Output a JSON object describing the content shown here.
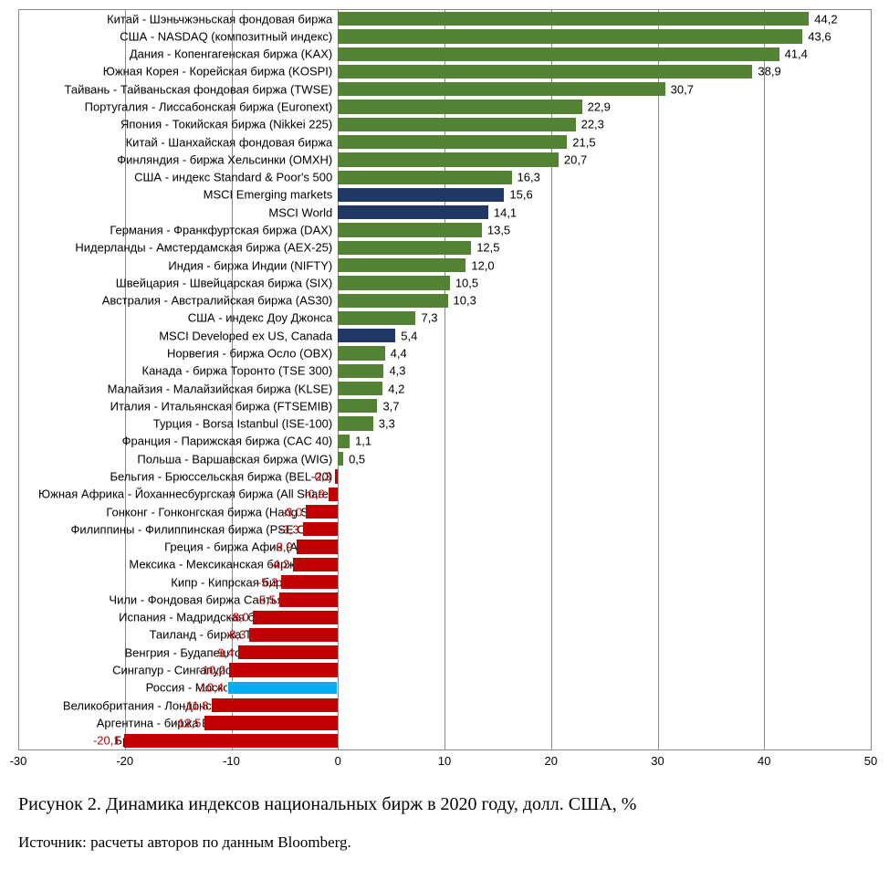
{
  "chart": {
    "type": "bar-horizontal",
    "background_color": "#ffffff",
    "grid_color": "#8a8a8a",
    "axis_color": "#8a8a8a",
    "label_fontsize": 13,
    "value_fontsize": 13,
    "bar_thickness_ratio": 0.8,
    "xlim": [
      -30,
      50
    ],
    "xtick_step": 10,
    "xticks": [
      "-30",
      "-20",
      "-10",
      "0",
      "10",
      "20",
      "30",
      "40",
      "50"
    ],
    "colors": {
      "positive": "#548235",
      "benchmark": "#1f3864",
      "negative": "#c00000",
      "highlight": "#00b0f0",
      "value_positive_text": "#000000",
      "value_negative_text": "#c00000"
    },
    "rows": [
      {
        "label": "Китай - Шэньчжэньская фондовая биржа",
        "value": 44.2,
        "display": "44,2",
        "color": "positive"
      },
      {
        "label": "США - NASDAQ (композитный индекс)",
        "value": 43.6,
        "display": "43,6",
        "color": "positive"
      },
      {
        "label": "Дания - Копенгагенская биржа (KAX)",
        "value": 41.4,
        "display": "41,4",
        "color": "positive"
      },
      {
        "label": "Южная Корея - Корейская биржа (KOSPI)",
        "value": 38.9,
        "display": "38,9",
        "color": "positive"
      },
      {
        "label": "Тайвань - Тайваньская фондовая биржа (TWSE)",
        "value": 30.7,
        "display": "30,7",
        "color": "positive"
      },
      {
        "label": "Португалия - Лиссабонская биржа (Euronext)",
        "value": 22.9,
        "display": "22,9",
        "color": "positive"
      },
      {
        "label": "Япония - Токийская биржа (Nikkei 225)",
        "value": 22.3,
        "display": "22,3",
        "color": "positive"
      },
      {
        "label": "Китай - Шанхайская фондовая биржа",
        "value": 21.5,
        "display": "21,5",
        "color": "positive"
      },
      {
        "label": "Финляндия - биржа Хельсинки (OMXH)",
        "value": 20.7,
        "display": "20,7",
        "color": "positive"
      },
      {
        "label": "США - индекс Standard & Poor's 500",
        "value": 16.3,
        "display": "16,3",
        "color": "positive"
      },
      {
        "label": "MSCI Emerging markets",
        "value": 15.6,
        "display": "15,6",
        "color": "benchmark"
      },
      {
        "label": "MSCI World",
        "value": 14.1,
        "display": "14,1",
        "color": "benchmark"
      },
      {
        "label": "Германия - Франкфуртская биржа (DAX)",
        "value": 13.5,
        "display": "13,5",
        "color": "positive"
      },
      {
        "label": "Нидерланды - Амстердамская биржа (AEX-25)",
        "value": 12.5,
        "display": "12,5",
        "color": "positive"
      },
      {
        "label": "Индия - биржа Индии (NIFTY)",
        "value": 12.0,
        "display": "12,0",
        "color": "positive"
      },
      {
        "label": "Швейцария - Швейцарская биржа (SIX)",
        "value": 10.5,
        "display": "10,5",
        "color": "positive"
      },
      {
        "label": "Австралия - Австралийская биржа (AS30)",
        "value": 10.3,
        "display": "10,3",
        "color": "positive"
      },
      {
        "label": "США - индекс Доу Джонса",
        "value": 7.3,
        "display": "7,3",
        "color": "positive"
      },
      {
        "label": "MSCI Developed ex US, Canada",
        "value": 5.4,
        "display": "5,4",
        "color": "benchmark"
      },
      {
        "label": "Норвегия - биржа Осло (OBX)",
        "value": 4.4,
        "display": "4,4",
        "color": "positive"
      },
      {
        "label": "Канада - биржа Торонто (TSE 300)",
        "value": 4.3,
        "display": "4,3",
        "color": "positive"
      },
      {
        "label": "Малайзия - Малайзийская биржа (KLSE)",
        "value": 4.2,
        "display": "4,2",
        "color": "positive"
      },
      {
        "label": "Италия - Итальянская биржа (FTSEMIB)",
        "value": 3.7,
        "display": "3,7",
        "color": "positive"
      },
      {
        "label": "Турция - Borsa Istanbul (ISE-100)",
        "value": 3.3,
        "display": "3,3",
        "color": "positive"
      },
      {
        "label": "Франция - Парижская биржа (CAC 40)",
        "value": 1.1,
        "display": "1,1",
        "color": "positive"
      },
      {
        "label": "Польша - Варшавская биржа (WIG)",
        "value": 0.5,
        "display": "0,5",
        "color": "positive"
      },
      {
        "label": "Бельгия - Брюссельская биржа (BEL-20)",
        "value": -0.3,
        "display": "-0,3",
        "color": "negative"
      },
      {
        "label": "Южная Африка - Йоханнесбургская биржа (All Share)",
        "value": -0.9,
        "display": "-0,9",
        "color": "negative"
      },
      {
        "label": "Гонконг - Гонконгская биржа (Hang Seng)",
        "value": -3.0,
        "display": "-3,0",
        "color": "negative"
      },
      {
        "label": "Филиппины - Филиппинская биржа (PSE Comp)",
        "value": -3.3,
        "display": "-3,3",
        "color": "negative"
      },
      {
        "label": "Греция - биржа Афин (ATHEX)",
        "value": -3.9,
        "display": "-3,9",
        "color": "negative"
      },
      {
        "label": "Мексика - Мексиканская биржа (IPC)",
        "value": -4.2,
        "display": "-4,2",
        "color": "negative"
      },
      {
        "label": "Кипр - Кипрская биржа (CSE)",
        "value": -5.3,
        "display": "-5,3",
        "color": "negative"
      },
      {
        "label": "Чили - Фондовая биржа Сантьяго (IPSA)",
        "value": -5.5,
        "display": "-5,5",
        "color": "negative"
      },
      {
        "label": "Испания - Мадридская биржа (Ibex 35)",
        "value": -8.0,
        "display": "-8,0",
        "color": "negative"
      },
      {
        "label": "Таиланд - биржа Таиланда (SET)",
        "value": -8.3,
        "display": "-8,3",
        "color": "negative"
      },
      {
        "label": "Венгрия - Будапештская биржа (BUX)",
        "value": -9.4,
        "display": "-9,4",
        "color": "negative"
      },
      {
        "label": "Сингапур - Сингапурская биржа (Straits)",
        "value": -10.2,
        "display": "-10,2",
        "color": "negative"
      },
      {
        "label": "Россия - Московская биржа (РТС)",
        "value": -10.4,
        "display": "-10,4",
        "color": "highlight"
      },
      {
        "label": "Великобритания - Лондонская биржа (FTSE 100)",
        "value": -11.8,
        "display": "-11,8",
        "color": "negative"
      },
      {
        "label": "Аргентина - биржа Буэнос-Айреса (MerVal)",
        "value": -12.5,
        "display": "-12,5",
        "color": "negative"
      },
      {
        "label": "Бразилия - биржа Сан-Паулу (Bovespa)",
        "value": -20.1,
        "display": "-20,1",
        "color": "negative"
      }
    ]
  },
  "caption": "Рисунок 2. Динамика индексов национальных бирж в 2020 году, долл. США, %",
  "source": "Источник: расчеты авторов по данным Bloomberg."
}
